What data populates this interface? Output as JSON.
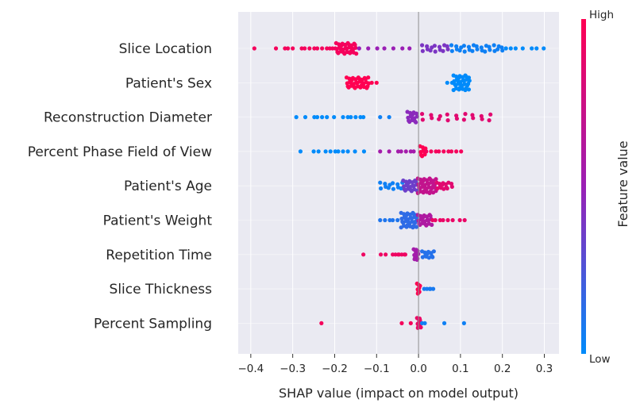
{
  "chart_data": {
    "type": "scatter",
    "subtype": "shap-beeswarm",
    "xlabel": "SHAP value (impact on model output)",
    "xlim": [
      -0.43,
      0.335
    ],
    "xticks": [
      -0.4,
      -0.3,
      -0.2,
      -0.1,
      0.0,
      0.1,
      0.2,
      0.3
    ],
    "xtick_labels": [
      "−0.4",
      "−0.3",
      "−0.2",
      "−0.1",
      "0.0",
      "0.1",
      "0.2",
      "0.3"
    ],
    "grid": true,
    "colorbar": {
      "label": "Feature value",
      "high_label": "High",
      "low_label": "Low",
      "low_color": "#008bfb",
      "mid_color": "#9a1fb5",
      "high_color": "#ff0052"
    },
    "features": [
      {
        "name": "Slice Location",
        "groups": [
          {
            "x": [
              -0.39,
              -0.34,
              -0.32,
              -0.31,
              -0.3,
              -0.28,
              -0.27,
              -0.26,
              -0.25,
              -0.24,
              -0.23,
              -0.22,
              -0.21,
              -0.205,
              -0.2
            ],
            "v": 0.95
          },
          {
            "x": [
              -0.195,
              -0.19,
              -0.185,
              -0.18,
              -0.175,
              -0.17,
              -0.165,
              -0.16,
              -0.155,
              -0.15
            ],
            "v": 0.95,
            "dense": 3
          },
          {
            "x": [
              -0.14,
              -0.12,
              -0.1,
              -0.08,
              -0.06,
              -0.04,
              -0.02
            ],
            "v": 0.5
          },
          {
            "x": [
              0.01,
              0.02,
              0.03,
              0.04,
              0.05,
              0.06,
              0.07
            ],
            "v": 0.4,
            "dense": 2
          },
          {
            "x": [
              0.08,
              0.09,
              0.1,
              0.11,
              0.12,
              0.13,
              0.14,
              0.15,
              0.16,
              0.17,
              0.18,
              0.19,
              0.2
            ],
            "v": 0.05,
            "dense": 2
          },
          {
            "x": [
              0.21,
              0.22,
              0.23,
              0.25,
              0.27,
              0.28,
              0.3
            ],
            "v": 0.0
          }
        ]
      },
      {
        "name": "Patient's Sex",
        "groups": [
          {
            "x": [
              -0.17,
              -0.165,
              -0.16,
              -0.155,
              -0.15,
              -0.145,
              -0.14,
              -0.135,
              -0.13,
              -0.125,
              -0.12
            ],
            "v": 1.0,
            "dense": 3
          },
          {
            "x": [
              -0.11,
              -0.1
            ],
            "v": 1.0
          },
          {
            "x": [
              0.07,
              0.08
            ],
            "v": 0.0
          },
          {
            "x": [
              0.085,
              0.09,
              0.095,
              0.1,
              0.105,
              0.11,
              0.115,
              0.12
            ],
            "v": 0.0,
            "dense": 4
          }
        ]
      },
      {
        "name": "Reconstruction Diameter",
        "groups": [
          {
            "x": [
              -0.29,
              -0.27,
              -0.25,
              -0.24,
              -0.23,
              -0.22,
              -0.2,
              -0.18,
              -0.17,
              -0.16,
              -0.15,
              -0.14,
              -0.13
            ],
            "v": 0.0
          },
          {
            "x": [
              -0.09,
              -0.07
            ],
            "v": 0.05
          },
          {
            "x": [
              -0.025,
              -0.02,
              -0.015,
              -0.01,
              -0.005
            ],
            "v": 0.45,
            "dense": 3
          },
          {
            "x": [
              0.01,
              0.03,
              0.05,
              0.07,
              0.09,
              0.11,
              0.13,
              0.15,
              0.17
            ],
            "v": 0.85,
            "dense": 2
          }
        ]
      },
      {
        "name": "Percent Phase Field of View",
        "groups": [
          {
            "x": [
              -0.28,
              -0.25,
              -0.24,
              -0.22,
              -0.21,
              -0.2,
              -0.19,
              -0.18,
              -0.17,
              -0.15,
              -0.13
            ],
            "v": 0.0
          },
          {
            "x": [
              -0.09,
              -0.07,
              -0.05,
              -0.04,
              -0.03,
              -0.02,
              -0.01
            ],
            "v": 0.55
          },
          {
            "x": [
              0.005,
              0.01,
              0.015
            ],
            "v": 1.0,
            "dense": 3
          },
          {
            "x": [
              0.02,
              0.03,
              0.04,
              0.05,
              0.06,
              0.07,
              0.08,
              0.09,
              0.1
            ],
            "v": 0.95
          }
        ]
      },
      {
        "name": "Patient's Age",
        "groups": [
          {
            "x": [
              -0.09,
              -0.08,
              -0.07,
              -0.06,
              -0.05,
              -0.04
            ],
            "v": 0.05,
            "dense": 2
          },
          {
            "x": [
              -0.035,
              -0.03,
              -0.025,
              -0.02,
              -0.015,
              -0.01,
              -0.005
            ],
            "v": 0.35,
            "dense": 3
          },
          {
            "x": [
              0.0,
              0.005,
              0.01,
              0.015,
              0.02,
              0.025,
              0.03,
              0.035,
              0.04
            ],
            "v": 0.7,
            "dense": 4
          },
          {
            "x": [
              0.045,
              0.05,
              0.055,
              0.06,
              0.065,
              0.07,
              0.08
            ],
            "v": 0.85,
            "dense": 2
          }
        ]
      },
      {
        "name": "Patient's Weight",
        "groups": [
          {
            "x": [
              -0.09,
              -0.08,
              -0.07,
              -0.06,
              -0.05
            ],
            "v": 0.1
          },
          {
            "x": [
              -0.04,
              -0.035,
              -0.03,
              -0.025,
              -0.02,
              -0.015,
              -0.01,
              -0.005
            ],
            "v": 0.15,
            "dense": 4
          },
          {
            "x": [
              0.0,
              0.005,
              0.01,
              0.015,
              0.02,
              0.025,
              0.03
            ],
            "v": 0.6,
            "dense": 3
          },
          {
            "x": [
              0.035,
              0.04,
              0.05,
              0.06,
              0.07,
              0.08,
              0.1,
              0.11
            ],
            "v": 0.9
          }
        ]
      },
      {
        "name": "Repetition Time",
        "groups": [
          {
            "x": [
              -0.13,
              -0.09,
              -0.08,
              -0.06,
              -0.055,
              -0.05,
              -0.045,
              -0.04,
              -0.035,
              -0.03
            ],
            "v": 0.92
          },
          {
            "x": [
              -0.01,
              -0.008,
              -0.006,
              -0.004,
              -0.002
            ],
            "v": 0.55,
            "dense": 3
          },
          {
            "x": [
              0.01,
              0.015,
              0.02,
              0.025,
              0.03,
              0.035
            ],
            "v": 0.12,
            "dense": 2
          }
        ]
      },
      {
        "name": "Slice Thickness",
        "groups": [
          {
            "x": [
              -0.002,
              0.0,
              0.002
            ],
            "v": 1.0,
            "dense": 3
          },
          {
            "x": [
              0.015,
              0.02,
              0.025,
              0.03,
              0.035
            ],
            "v": 0.08
          }
        ]
      },
      {
        "name": "Percent Sampling",
        "groups": [
          {
            "x": [
              -0.23,
              -0.04,
              -0.02
            ],
            "v": 0.95
          },
          {
            "x": [
              -0.002,
              0.0,
              0.002,
              0.004
            ],
            "v": 0.9,
            "dense": 3
          },
          {
            "x": [
              0.01,
              0.015,
              0.06,
              0.11
            ],
            "v": 0.05
          }
        ]
      }
    ]
  }
}
